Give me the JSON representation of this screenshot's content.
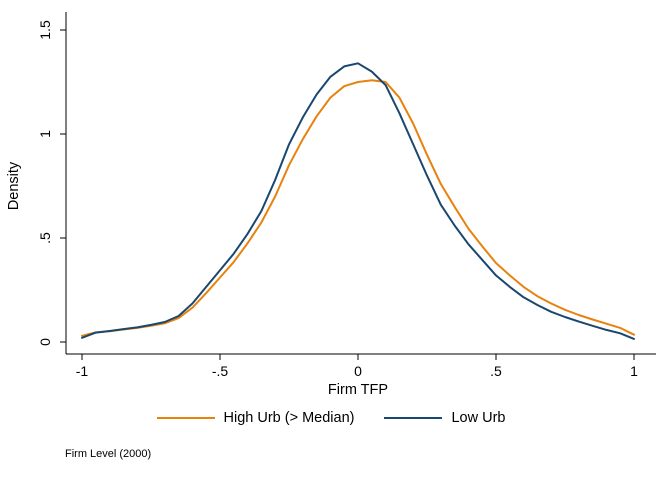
{
  "chart_data": {
    "type": "line",
    "title": "",
    "xlabel": "Firm TFP",
    "ylabel": "Density",
    "note": "Firm Level (2000)",
    "xlim": [
      -1,
      1
    ],
    "ylim": [
      0,
      1.5
    ],
    "grid": false,
    "legend_position": "bottom-center",
    "xticks": {
      "values": [
        -1,
        -0.5,
        0,
        0.5,
        1
      ],
      "labels": [
        "-1",
        "-.5",
        "0",
        ".5",
        "1"
      ]
    },
    "yticks": {
      "values": [
        0,
        0.5,
        1,
        1.5
      ],
      "labels": [
        "0",
        ".5",
        "1",
        "1.5"
      ]
    },
    "x": [
      -1,
      -0.95,
      -0.9,
      -0.85,
      -0.8,
      -0.75,
      -0.7,
      -0.65,
      -0.6,
      -0.55,
      -0.5,
      -0.45,
      -0.4,
      -0.35,
      -0.3,
      -0.25,
      -0.2,
      -0.15,
      -0.1,
      -0.05,
      0,
      0.05,
      0.1,
      0.15,
      0.2,
      0.25,
      0.3,
      0.35,
      0.4,
      0.45,
      0.5,
      0.55,
      0.6,
      0.65,
      0.7,
      0.75,
      0.8,
      0.85,
      0.9,
      0.95,
      1
    ],
    "series": [
      {
        "name": "High Urb (> Median)",
        "color": "#e8820e",
        "values": [
          0.03,
          0.046,
          0.052,
          0.06,
          0.068,
          0.078,
          0.09,
          0.115,
          0.165,
          0.235,
          0.31,
          0.385,
          0.475,
          0.575,
          0.7,
          0.85,
          0.975,
          1.085,
          1.175,
          1.23,
          1.25,
          1.258,
          1.25,
          1.175,
          1.05,
          0.9,
          0.76,
          0.65,
          0.545,
          0.46,
          0.38,
          0.32,
          0.265,
          0.22,
          0.185,
          0.155,
          0.13,
          0.108,
          0.088,
          0.068,
          0.035
        ]
      },
      {
        "name": "Low Urb",
        "color": "#1a476f",
        "values": [
          0.02,
          0.045,
          0.053,
          0.062,
          0.07,
          0.082,
          0.096,
          0.125,
          0.185,
          0.265,
          0.345,
          0.425,
          0.52,
          0.63,
          0.78,
          0.95,
          1.08,
          1.19,
          1.275,
          1.325,
          1.34,
          1.3,
          1.235,
          1.1,
          0.95,
          0.8,
          0.66,
          0.56,
          0.47,
          0.395,
          0.32,
          0.265,
          0.215,
          0.178,
          0.145,
          0.12,
          0.098,
          0.078,
          0.058,
          0.042,
          0.015
        ]
      }
    ],
    "axis_color": "#000000"
  }
}
